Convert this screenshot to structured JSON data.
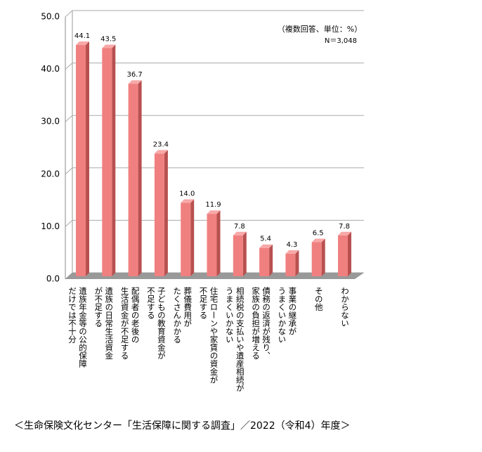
{
  "chart_data": {
    "type": "bar",
    "annotations": [
      "（複数回答、単位：%）",
      "N＝3,048"
    ],
    "source": "＜生命保険文化センター「生活保障に関する調査」／2022（令和4）年度＞",
    "categories": [
      [
        "遺族年金等の公的保障",
        "だけでは不十分"
      ],
      [
        "遺族の日常生活資金",
        "が不足する"
      ],
      [
        "配偶者の老後の",
        "生活資金が不足する"
      ],
      [
        "子どもの教育資金が",
        "不足する"
      ],
      [
        "葬儀費用が",
        "たくさんかかる"
      ],
      [
        "住宅ローンや家賃の資金が",
        "不足する"
      ],
      [
        "相続税の支払いや遺産相続が",
        "うまくいかない"
      ],
      [
        "債務の返済が残り、",
        "家族の負担が増える"
      ],
      [
        "事業の継承が",
        "うまくいかない"
      ],
      [
        "その他"
      ],
      [
        "わからない"
      ]
    ],
    "values": [
      44.1,
      43.5,
      36.7,
      23.4,
      14.0,
      11.9,
      7.8,
      5.4,
      4.3,
      6.5,
      7.8
    ],
    "value_labels": [
      "44.1",
      "43.5",
      "36.7",
      "23.4",
      "14.0",
      "11.9",
      "7.8",
      "5.4",
      "4.3",
      "6.5",
      "7.8"
    ],
    "color": "#f08080",
    "ylim": [
      0,
      50
    ],
    "yticks": [
      {
        "value": 0,
        "label": "0.0"
      },
      {
        "value": 10,
        "label": "10.0"
      },
      {
        "value": 20,
        "label": "20.0"
      },
      {
        "value": 30,
        "label": "30.0"
      },
      {
        "value": 40,
        "label": "40.0"
      },
      {
        "value": 50,
        "label": "50.0"
      }
    ],
    "grid": true
  }
}
